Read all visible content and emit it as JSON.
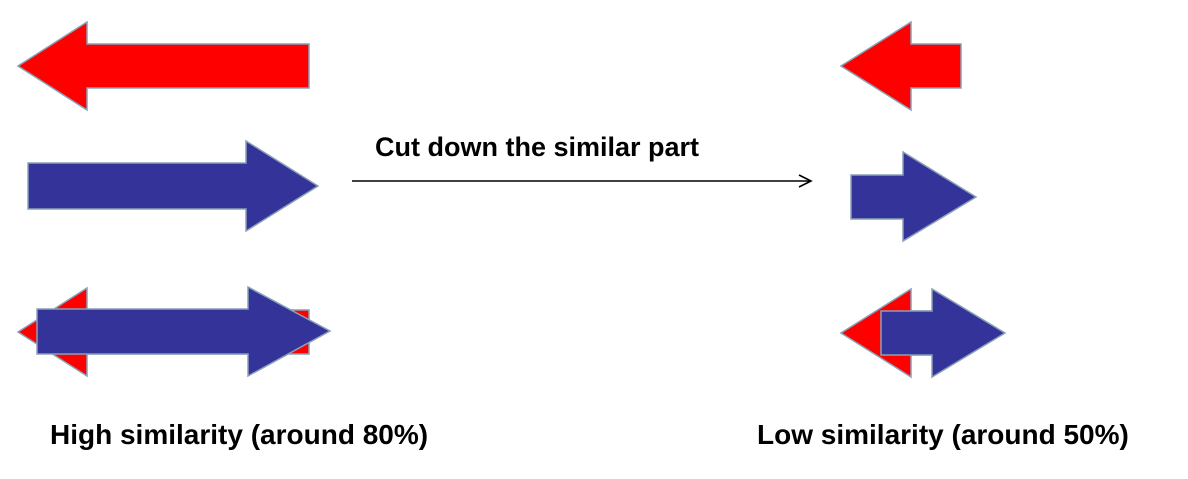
{
  "process": {
    "label": "Cut down the similar part"
  },
  "captions": {
    "high": "High similarity (around 80%)",
    "low": "Low similarity (around 50%)"
  },
  "similarity": {
    "high_percent": 80,
    "low_percent": 50
  },
  "colors": {
    "red_arrow": "#ff0000",
    "blue_arrow": "#333399",
    "arrow_outline": "#8aa0b8",
    "connector": "#000000",
    "text": "#000000",
    "background": "#ffffff"
  }
}
